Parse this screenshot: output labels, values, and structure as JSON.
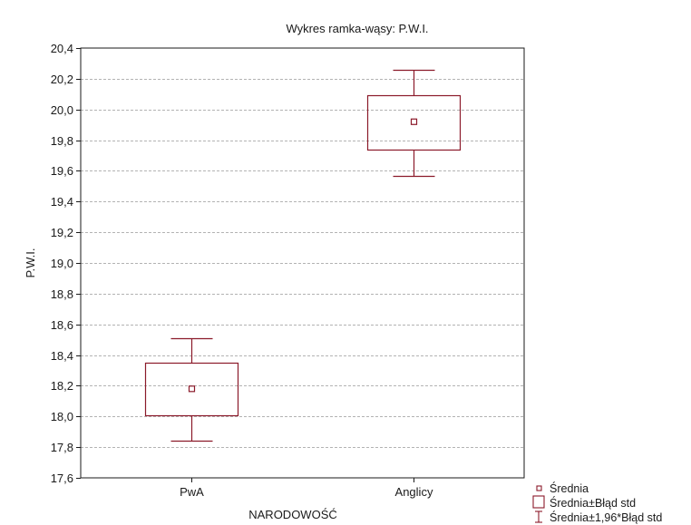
{
  "chart_data": {
    "type": "box",
    "title": "Wykres ramka-wąsy:  P.W.I.",
    "xlabel": "NARODOWOŚĆ",
    "ylabel": "P.W.I.",
    "ylim": [
      17.6,
      20.4
    ],
    "yticks": [
      17.6,
      17.8,
      18.0,
      18.2,
      18.4,
      18.6,
      18.8,
      19.0,
      19.2,
      19.4,
      19.6,
      19.8,
      20.0,
      20.2,
      20.4
    ],
    "ytick_labels": [
      "17,6",
      "17,8",
      "18,0",
      "18,2",
      "18,4",
      "18,6",
      "18,8",
      "19,0",
      "19,2",
      "19,4",
      "19,6",
      "19,8",
      "20,0",
      "20,2",
      "20,4"
    ],
    "categories": [
      "PwA",
      "Anglicy"
    ],
    "groups": [
      {
        "category": "PwA",
        "mean": 18.18,
        "box_low": 18.01,
        "box_high": 18.35,
        "whisker_low": 17.84,
        "whisker_high": 18.51
      },
      {
        "category": "Anglicy",
        "mean": 19.92,
        "box_low": 19.74,
        "box_high": 20.09,
        "whisker_low": 19.57,
        "whisker_high": 20.26
      }
    ],
    "grid": true,
    "legend_position": "bottom-right",
    "legend": [
      {
        "symbol": "point",
        "label": "Średnia"
      },
      {
        "symbol": "box",
        "label": "Średnia±Błąd std"
      },
      {
        "symbol": "whisker",
        "label": "Średnia±1,96*Błąd std"
      }
    ],
    "colors": {
      "marks": "#8b1a2a",
      "grid": "#9a9a9a",
      "axis": "#1a1a1a"
    }
  }
}
